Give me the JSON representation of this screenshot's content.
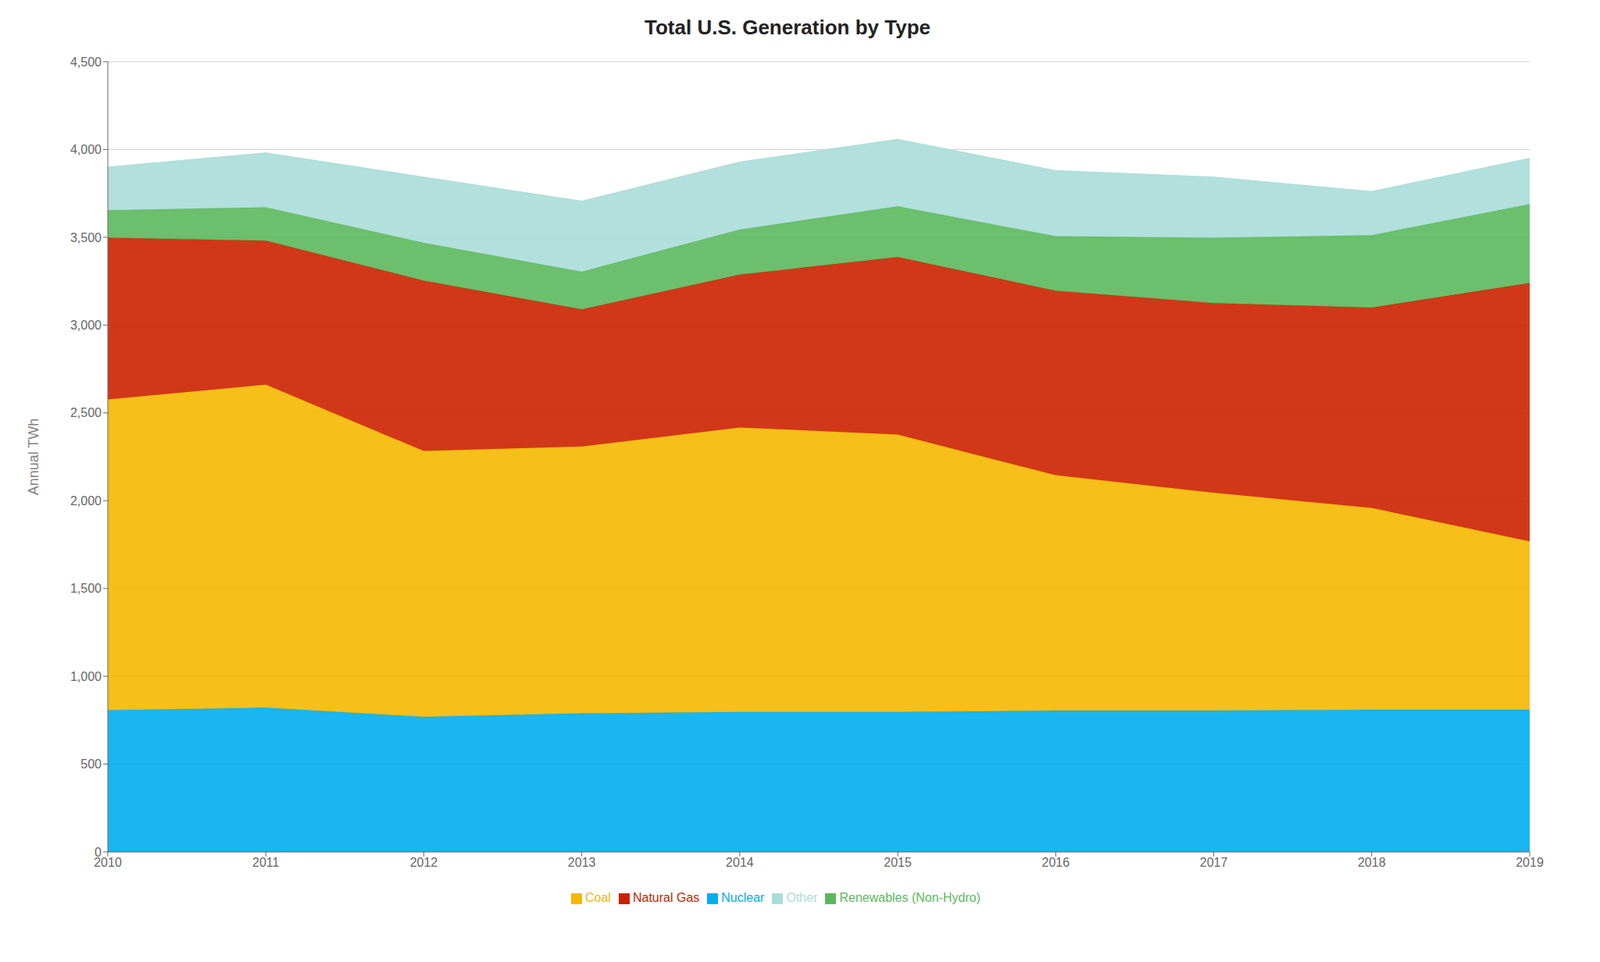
{
  "chart_data": {
    "type": "area",
    "title": "Total U.S. Generation by Type",
    "ylabel": "Annual TWh",
    "stacked": true,
    "grid": true,
    "legend": "bottom",
    "x": [
      2010,
      2011,
      2012,
      2013,
      2014,
      2015,
      2016,
      2017,
      2018,
      2019
    ],
    "xlim": [
      2010,
      2019
    ],
    "xticks": [
      2010,
      2011,
      2012,
      2013,
      2014,
      2015,
      2016,
      2017,
      2018,
      2019
    ],
    "ylim": [
      0,
      4500
    ],
    "yticks": [
      0,
      500,
      {
        "value": 1000,
        "label": "1,000"
      },
      {
        "value": 1500,
        "label": "1,500"
      },
      {
        "value": 2000,
        "label": "2,000"
      },
      {
        "value": 2500,
        "label": "2,500"
      },
      {
        "value": 3000,
        "label": "3,000"
      },
      {
        "value": 3500,
        "label": "3,500"
      },
      {
        "value": 4000,
        "label": "4,000"
      },
      {
        "value": 4500,
        "label": "4,500"
      }
    ],
    "series": [
      {
        "name": "Nuclear",
        "color": "#00AEEF",
        "values": [
          807,
          821,
          769,
          789,
          797,
          797,
          805,
          805,
          809,
          809
        ]
      },
      {
        "name": "Coal",
        "color": "#F5B800",
        "values": [
          1770,
          1840,
          1514,
          1520,
          1620,
          1580,
          1340,
          1240,
          1150,
          960
        ]
      },
      {
        "name": "Natural Gas",
        "color": "#CC2200",
        "values": [
          920,
          820,
          970,
          780,
          870,
          1010,
          1050,
          1080,
          1140,
          1470
        ]
      },
      {
        "name": "Renewables (Non-Hydro)",
        "color": "#5CB85C",
        "values": [
          157,
          190,
          215,
          215,
          257,
          289,
          311,
          372,
          413,
          449
        ]
      },
      {
        "name": "Other",
        "color": "#AADDD8",
        "values": [
          246,
          310,
          375,
          402,
          385,
          382,
          374,
          346,
          249,
          262
        ]
      }
    ]
  }
}
